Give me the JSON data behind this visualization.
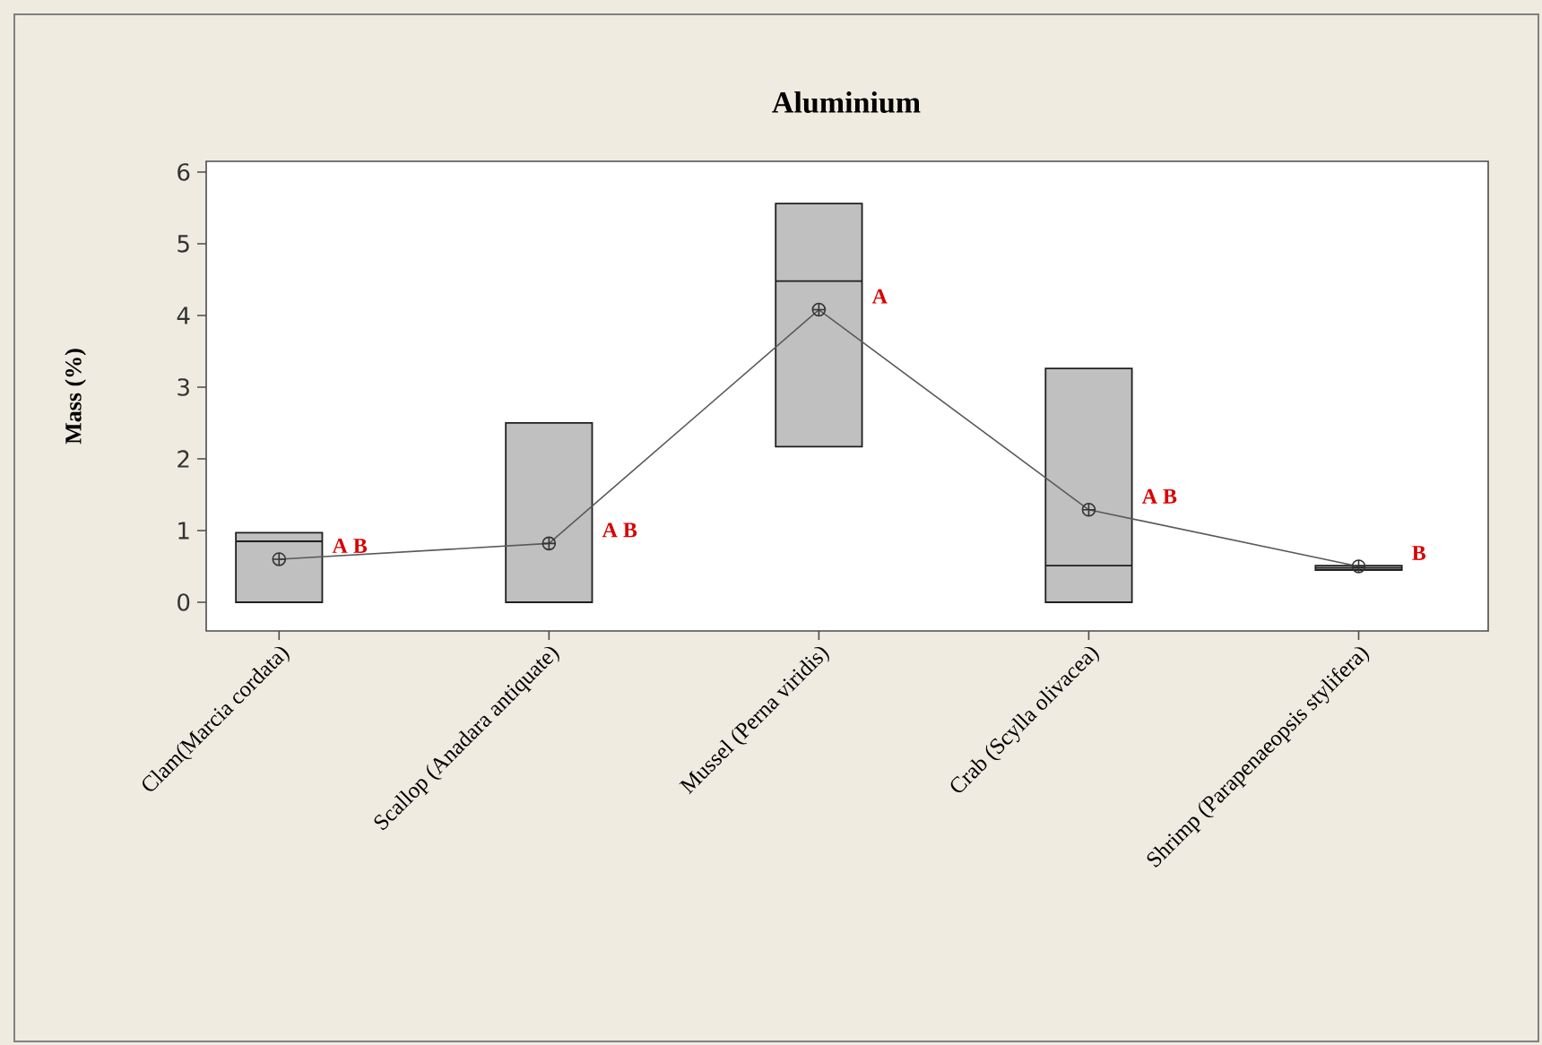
{
  "chart_data": {
    "type": "box",
    "title": "Aluminium",
    "ylabel": "Mass (%)",
    "categories": [
      "Clam(Marcia cordata)",
      "Scallop (Anadara antiquate)",
      "Mussel (Perna viridis)",
      "Crab (Scylla olivacea)",
      "Shrimp (Parapenaeopsis stylifera)"
    ],
    "boxes": [
      {
        "low": 0,
        "q1": 0,
        "median": 0.85,
        "q3": 0.97,
        "high": 0.97,
        "mean": 0.6
      },
      {
        "low": 0,
        "q1": 0,
        "median": 0,
        "q3": 2.5,
        "high": 2.5,
        "mean": 0.82
      },
      {
        "low": 2.17,
        "q1": 2.17,
        "median": 4.48,
        "q3": 5.56,
        "high": 5.56,
        "mean": 4.08
      },
      {
        "low": 0,
        "q1": 0,
        "median": 0.51,
        "q3": 3.26,
        "high": 3.26,
        "mean": 1.29
      },
      {
        "low": 0.45,
        "q1": 0.45,
        "median": 0.48,
        "q3": 0.51,
        "high": 0.51,
        "mean": 0.5
      }
    ],
    "color": "#c0c0c0",
    "series": [
      {
        "type": "line",
        "color": "#5a5a5a",
        "values": [
          0.6,
          0.82,
          4.08,
          1.29,
          0.5
        ]
      }
    ],
    "ylim": [
      -0.4,
      6.15
    ],
    "yticks": [
      0,
      1,
      2,
      3,
      4,
      5,
      6
    ],
    "annotations": [
      {
        "text": "A B",
        "x": "Clam(Marcia cordata)",
        "y": 0.6
      },
      {
        "text": "A B",
        "x": "Scallop (Anadara antiquate)",
        "y": 0.82
      },
      {
        "text": "A",
        "x": "Mussel (Perna viridis)",
        "y": 4.08
      },
      {
        "text": "A B",
        "x": "Crab (Scylla olivacea)",
        "y": 1.29
      },
      {
        "text": "B",
        "x": "Shrimp (Parapenaeopsis stylifera)",
        "y": 0.5
      }
    ],
    "grid": false
  }
}
